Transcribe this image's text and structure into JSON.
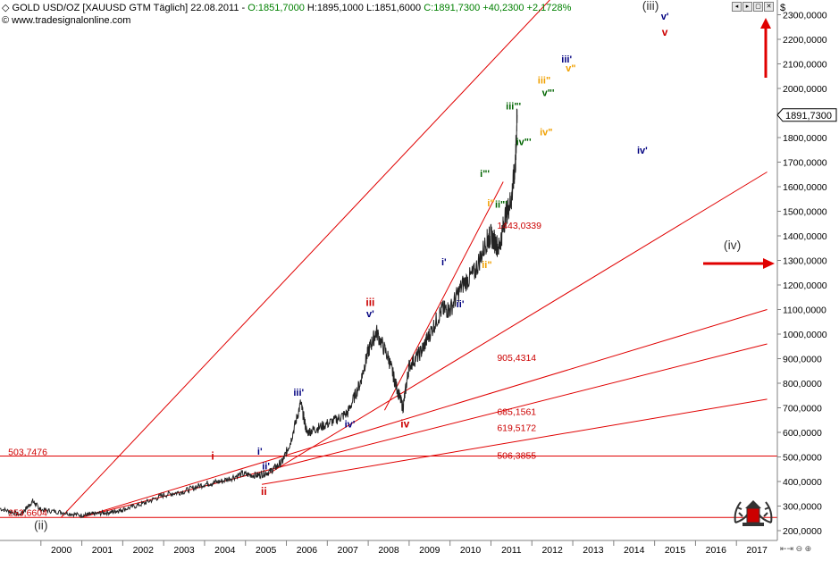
{
  "header": {
    "symbol": "GOLD USD/OZ [XAUUSD GTM  Täglich]",
    "date": "22.08.2011",
    "open": "O:1851,7000",
    "high": "H:1895,1000",
    "low": "L:1851,6000",
    "close_change": "C:1891,7300 +40,2300 +2,1728%",
    "site": "© www.tradesignalonline.com",
    "currency": "$",
    "last_price": "1891,7300"
  },
  "window_buttons": [
    "◂",
    "▸",
    "▢",
    "✕"
  ],
  "colors": {
    "trendline": "#e00000",
    "price": "#222222",
    "wave_red": "#cc0000",
    "wave_blue": "#000080",
    "wave_green": "#006400",
    "wave_orange": "#f0a000",
    "wave_gray": "#333333"
  },
  "chart_data": {
    "type": "line",
    "title": "GOLD USD/OZ [XAUUSD GTM Täglich]",
    "xlabel": "",
    "ylabel": "",
    "xlim": [
      1999.0,
      2018.0
    ],
    "ylim": [
      160,
      2360
    ],
    "x_ticks": [
      "2000",
      "2001",
      "2002",
      "2003",
      "2004",
      "2005",
      "2006",
      "2007",
      "2008",
      "2009",
      "2010",
      "2011",
      "2012",
      "2013",
      "2014",
      "2015",
      "2016",
      "2017"
    ],
    "y_ticks": [
      "200,0000",
      "300,0000",
      "400,0000",
      "500,0000",
      "600,0000",
      "700,0000",
      "800,0000",
      "900,0000",
      "1000,0000",
      "1100,0000",
      "1200,0000",
      "1300,0000",
      "1400,0000",
      "1500,0000",
      "1600,0000",
      "1700,0000",
      "1800,0000",
      "1900,0000",
      "2000,0000",
      "2100,0000",
      "2200,0000",
      "2300,0000"
    ],
    "price_series": {
      "name": "GOLD USD/OZ",
      "x": [
        1999.0,
        1999.5,
        1999.8,
        2000.0,
        2000.5,
        2001.0,
        2001.3,
        2001.7,
        2002.0,
        2002.5,
        2003.0,
        2003.5,
        2004.0,
        2004.4,
        2004.9,
        2005.3,
        2005.6,
        2005.9,
        2006.1,
        2006.35,
        2006.5,
        2006.8,
        2007.2,
        2007.5,
        2007.8,
        2008.0,
        2008.2,
        2008.5,
        2008.7,
        2008.85,
        2009.0,
        2009.3,
        2009.5,
        2009.8,
        2010.0,
        2010.3,
        2010.6,
        2010.9,
        2011.0,
        2011.2,
        2011.35,
        2011.5,
        2011.6,
        2011.64
      ],
      "values": [
        290,
        265,
        320,
        285,
        275,
        262,
        268,
        275,
        285,
        310,
        345,
        360,
        390,
        400,
        430,
        425,
        440,
        480,
        560,
        720,
        600,
        620,
        650,
        680,
        800,
        930,
        1010,
        900,
        780,
        700,
        870,
        930,
        1000,
        1100,
        1100,
        1200,
        1250,
        1380,
        1400,
        1350,
        1480,
        1550,
        1700,
        1891.73
      ]
    },
    "horizontal_lines": [
      {
        "label": "503,7476",
        "value": 503.7476
      },
      {
        "label": "253,6604",
        "value": 253.6604
      }
    ],
    "trendlines": [
      {
        "x1": 2000.5,
        "y1": 255,
        "x2": 2012.55,
        "y2": 2380
      },
      {
        "x1": 2005.5,
        "y1": 425,
        "x2": 2017.75,
        "y2": 1660
      },
      {
        "x1": 2001.0,
        "y1": 255,
        "x2": 2017.75,
        "y2": 1100
      },
      {
        "x1": 2001.0,
        "y1": 255,
        "x2": 2017.75,
        "y2": 960
      },
      {
        "x1": 2005.4,
        "y1": 388,
        "x2": 2017.75,
        "y2": 735
      },
      {
        "x1": 2008.4,
        "y1": 690,
        "x2": 2011.3,
        "y2": 1620
      }
    ],
    "level_labels": [
      {
        "label": "1443,0339",
        "x": 2011.15,
        "value": 1443.03,
        "color": "#cc0000"
      },
      {
        "label": "905,4314",
        "x": 2011.15,
        "value": 905.43,
        "color": "#cc0000"
      },
      {
        "label": "685,1561",
        "x": 2011.15,
        "value": 685.16,
        "color": "#cc0000"
      },
      {
        "label": "619,5172",
        "x": 2011.15,
        "value": 619.52,
        "color": "#cc0000"
      },
      {
        "label": "506,3855",
        "x": 2011.15,
        "value": 506.39,
        "color": "#cc0000"
      },
      {
        "label": "503,7476",
        "x": 1999.2,
        "value": 522,
        "color": "#cc0000"
      },
      {
        "label": "253,6604",
        "x": 1999.2,
        "value": 275,
        "color": "#cc0000"
      }
    ],
    "annotations": [
      {
        "text": "i",
        "x": 2004.2,
        "value": 490,
        "color": "#cc0000",
        "size": 12
      },
      {
        "text": "ii",
        "x": 2005.45,
        "value": 345,
        "color": "#cc0000",
        "size": 12
      },
      {
        "text": "iii",
        "x": 2008.05,
        "value": 1115,
        "color": "#cc0000",
        "size": 12
      },
      {
        "text": "iv",
        "x": 2008.9,
        "value": 620,
        "color": "#cc0000",
        "size": 12
      },
      {
        "text": "v",
        "x": 2015.25,
        "value": 2215,
        "color": "#cc0000",
        "size": 12
      },
      {
        "text": "i'",
        "x": 2005.35,
        "value": 510,
        "color": "#000080",
        "size": 11
      },
      {
        "text": "ii'",
        "x": 2005.5,
        "value": 450,
        "color": "#000080",
        "size": 11
      },
      {
        "text": "iii'",
        "x": 2006.3,
        "value": 750,
        "color": "#000080",
        "size": 11
      },
      {
        "text": "iv'",
        "x": 2007.55,
        "value": 620,
        "color": "#000080",
        "size": 11
      },
      {
        "text": "v'",
        "x": 2008.05,
        "value": 1070,
        "color": "#000080",
        "size": 11
      },
      {
        "text": "i'",
        "x": 2009.85,
        "value": 1280,
        "color": "#000080",
        "size": 11
      },
      {
        "text": "ii'",
        "x": 2010.25,
        "value": 1110,
        "color": "#000080",
        "size": 11
      },
      {
        "text": "iii'",
        "x": 2012.85,
        "value": 2105,
        "color": "#000080",
        "size": 11
      },
      {
        "text": "iv'",
        "x": 2014.7,
        "value": 1735,
        "color": "#000080",
        "size": 11
      },
      {
        "text": "v'",
        "x": 2015.25,
        "value": 2280,
        "color": "#000080",
        "size": 11
      },
      {
        "text": "i\"",
        "x": 2011.0,
        "value": 1520,
        "color": "#f0a000",
        "size": 11
      },
      {
        "text": "ii\"",
        "x": 2010.9,
        "value": 1270,
        "color": "#f0a000",
        "size": 11
      },
      {
        "text": "iii\"",
        "x": 2012.3,
        "value": 2020,
        "color": "#f0a000",
        "size": 11
      },
      {
        "text": "iv\"",
        "x": 2012.35,
        "value": 1810,
        "color": "#f0a000",
        "size": 11
      },
      {
        "text": "v\"",
        "x": 2012.95,
        "value": 2070,
        "color": "#f0a000",
        "size": 11
      },
      {
        "text": "i\"'",
        "x": 2010.85,
        "value": 1640,
        "color": "#006400",
        "size": 11
      },
      {
        "text": "ii\"'",
        "x": 2011.25,
        "value": 1515,
        "color": "#006400",
        "size": 11
      },
      {
        "text": "iii\"'",
        "x": 2011.55,
        "value": 1915,
        "color": "#006400",
        "size": 11
      },
      {
        "text": "iv\"'",
        "x": 2011.8,
        "value": 1770,
        "color": "#006400",
        "size": 11
      },
      {
        "text": "v\"'",
        "x": 2012.4,
        "value": 1970,
        "color": "#006400",
        "size": 11
      },
      {
        "text": "(iii)",
        "x": 2014.9,
        "value": 2320,
        "color": "#333333",
        "size": 14
      },
      {
        "text": "(ii)",
        "x": 2000.0,
        "value": 205,
        "color": "#333333",
        "size": 14
      },
      {
        "text": "(iv)",
        "x": 2016.9,
        "value": 1345,
        "color": "#333333",
        "size": 14
      }
    ],
    "arrows": [
      {
        "name": "up-arrow",
        "direction": "up"
      },
      {
        "name": "right-arrow",
        "direction": "right"
      }
    ]
  }
}
